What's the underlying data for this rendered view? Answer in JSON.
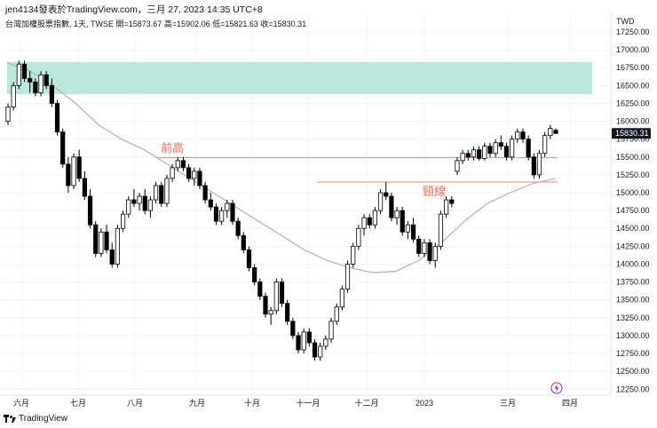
{
  "header": {
    "byline": "jen4134發表於TradingView.com，三月 27, 2023 14:35 UTC+8",
    "symbol_line": "台灣加權股票指數, 1天, TWSE 開=15873.67 高=15902.06 低=15821.63 收=15830.31"
  },
  "footer": {
    "brand": "TradingView"
  },
  "colors": {
    "up": "#ffffff",
    "down": "#000000",
    "ma": "#b2b2b2",
    "zone": "#b4e4d8",
    "level": "#f08a80",
    "annotation": "#f0695a",
    "grid": "#f0f3fa"
  },
  "chart_data": {
    "type": "candlestick",
    "currency": "TWD",
    "ylim": [
      12200,
      17450
    ],
    "y_ticks": [
      "17250.00",
      "17000.00",
      "16750.00",
      "16500.00",
      "16250.00",
      "16000.00",
      "15750.00",
      "15500.00",
      "15250.00",
      "15000.00",
      "14750.00",
      "14500.00",
      "14250.00",
      "14000.00",
      "13750.00",
      "13500.00",
      "13250.00",
      "13000.00",
      "12750.00",
      "12500.00",
      "12250.00"
    ],
    "x_ticks": [
      "六月",
      "七月",
      "八月",
      "九月",
      "十月",
      "十一月",
      "十二月",
      "2023",
      "三月",
      "四月"
    ],
    "last_price": "15830.31",
    "annotations": [
      {
        "text": "前高",
        "price": 15490
      },
      {
        "text": "頸線",
        "price": 15150
      }
    ],
    "resistance_zone": [
      16380,
      16830
    ],
    "candles": [
      [
        16000,
        16250,
        15950,
        16200
      ],
      [
        16200,
        16550,
        16150,
        16500
      ],
      [
        16500,
        16850,
        16450,
        16800
      ],
      [
        16800,
        16850,
        16550,
        16600
      ],
      [
        16600,
        16700,
        16400,
        16550
      ],
      [
        16550,
        16600,
        16350,
        16400
      ],
      [
        16400,
        16700,
        16350,
        16650
      ],
      [
        16650,
        16700,
        16450,
        16500
      ],
      [
        16500,
        16600,
        16200,
        16250
      ],
      [
        16250,
        16300,
        15800,
        15850
      ],
      [
        15850,
        15900,
        15350,
        15400
      ],
      [
        15400,
        15500,
        15000,
        15100
      ],
      [
        15100,
        15550,
        15050,
        15500
      ],
      [
        15500,
        15600,
        15150,
        15200
      ],
      [
        15200,
        15300,
        14900,
        14950
      ],
      [
        14950,
        15050,
        14500,
        14550
      ],
      [
        14550,
        14600,
        14100,
        14150
      ],
      [
        14150,
        14500,
        14100,
        14450
      ],
      [
        14450,
        14550,
        14150,
        14200
      ],
      [
        14200,
        14300,
        13950,
        14000
      ],
      [
        14000,
        14550,
        13950,
        14500
      ],
      [
        14500,
        14750,
        14450,
        14700
      ],
      [
        14700,
        14950,
        14650,
        14900
      ],
      [
        14900,
        15050,
        14800,
        14850
      ],
      [
        14850,
        15000,
        14750,
        14950
      ],
      [
        14950,
        15050,
        14700,
        14750
      ],
      [
        14750,
        14950,
        14650,
        14900
      ],
      [
        14900,
        15150,
        14850,
        15100
      ],
      [
        15100,
        15150,
        14800,
        14850
      ],
      [
        14850,
        15250,
        14800,
        15200
      ],
      [
        15200,
        15400,
        15150,
        15350
      ],
      [
        15350,
        15500,
        15300,
        15450
      ],
      [
        15450,
        15500,
        15300,
        15350
      ],
      [
        15350,
        15400,
        15150,
        15200
      ],
      [
        15200,
        15350,
        15100,
        15300
      ],
      [
        15300,
        15350,
        15050,
        15100
      ],
      [
        15100,
        15150,
        14850,
        14900
      ],
      [
        14900,
        15000,
        14750,
        14800
      ],
      [
        14800,
        14850,
        14550,
        14600
      ],
      [
        14600,
        14800,
        14550,
        14750
      ],
      [
        14750,
        14900,
        14650,
        14850
      ],
      [
        14850,
        14900,
        14550,
        14600
      ],
      [
        14600,
        14650,
        14350,
        14400
      ],
      [
        14400,
        14450,
        14150,
        14200
      ],
      [
        14200,
        14250,
        13900,
        13950
      ],
      [
        13950,
        14000,
        13700,
        13750
      ],
      [
        13750,
        13800,
        13500,
        13550
      ],
      [
        13550,
        13600,
        13250,
        13300
      ],
      [
        13300,
        13400,
        13150,
        13350
      ],
      [
        13350,
        13800,
        13300,
        13750
      ],
      [
        13750,
        13800,
        13400,
        13450
      ],
      [
        13450,
        13500,
        13150,
        13200
      ],
      [
        13200,
        13250,
        12950,
        13000
      ],
      [
        13000,
        13050,
        12750,
        12800
      ],
      [
        12800,
        13100,
        12750,
        13050
      ],
      [
        13050,
        13100,
        12850,
        12900
      ],
      [
        12900,
        12950,
        12650,
        12700
      ],
      [
        12700,
        12900,
        12650,
        12850
      ],
      [
        12850,
        13000,
        12800,
        12950
      ],
      [
        12950,
        13250,
        12900,
        13200
      ],
      [
        13200,
        13450,
        13150,
        13400
      ],
      [
        13400,
        13700,
        13350,
        13650
      ],
      [
        13650,
        14050,
        13600,
        14000
      ],
      [
        14000,
        14300,
        13950,
        14250
      ],
      [
        14250,
        14550,
        14200,
        14500
      ],
      [
        14500,
        14700,
        14400,
        14650
      ],
      [
        14650,
        14700,
        14500,
        14550
      ],
      [
        14550,
        14800,
        14500,
        14750
      ],
      [
        14750,
        15050,
        14700,
        15000
      ],
      [
        15000,
        15150,
        14900,
        14950
      ],
      [
        14950,
        15000,
        14600,
        14650
      ],
      [
        14650,
        14800,
        14550,
        14750
      ],
      [
        14750,
        14800,
        14400,
        14450
      ],
      [
        14450,
        14600,
        14350,
        14550
      ],
      [
        14550,
        14650,
        14300,
        14350
      ],
      [
        14350,
        14400,
        14100,
        14150
      ],
      [
        14150,
        14350,
        14100,
        14300
      ],
      [
        14300,
        14350,
        14000,
        14050
      ],
      [
        14050,
        14300,
        13950,
        14250
      ],
      [
        14250,
        14750,
        14200,
        14700
      ],
      [
        14700,
        14950,
        14650,
        14900
      ],
      [
        14900,
        14950,
        14800,
        14850
      ],
      [
        15300,
        15500,
        15250,
        15450
      ],
      [
        15450,
        15600,
        15400,
        15550
      ],
      [
        15550,
        15600,
        15450,
        15500
      ],
      [
        15500,
        15650,
        15450,
        15600
      ],
      [
        15600,
        15650,
        15450,
        15480
      ],
      [
        15480,
        15700,
        15450,
        15650
      ],
      [
        15650,
        15700,
        15500,
        15550
      ],
      [
        15550,
        15750,
        15500,
        15700
      ],
      [
        15700,
        15800,
        15600,
        15650
      ],
      [
        15650,
        15700,
        15450,
        15500
      ],
      [
        15500,
        15800,
        15450,
        15750
      ],
      [
        15750,
        15900,
        15700,
        15850
      ],
      [
        15850,
        15900,
        15700,
        15750
      ],
      [
        15750,
        15800,
        15450,
        15500
      ],
      [
        15500,
        15550,
        15200,
        15250
      ],
      [
        15250,
        15600,
        15200,
        15550
      ],
      [
        15550,
        15850,
        15500,
        15800
      ],
      [
        15800,
        15950,
        15750,
        15900
      ],
      [
        15873.67,
        15902.06,
        15821.63,
        15830.31
      ]
    ],
    "ma_line": [
      16820,
      16700,
      16500,
      16250,
      15950,
      15750,
      15600,
      15400,
      15200,
      15000,
      14800,
      14600,
      14400,
      14200,
      14050,
      13950,
      13880,
      13900,
      14050,
      14300,
      14600,
      14850,
      15000,
      15130,
      15200
    ]
  }
}
